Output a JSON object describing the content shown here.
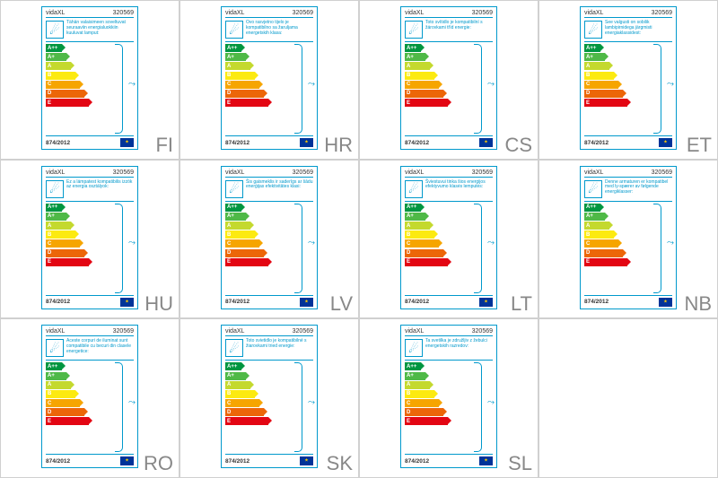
{
  "brand": "vidaXL",
  "sku": "320569",
  "regulation": "874/2012",
  "energy_classes": [
    {
      "label": "A++",
      "color": "#009640",
      "width": 18
    },
    {
      "label": "A+",
      "color": "#4fb947",
      "width": 23
    },
    {
      "label": "A",
      "color": "#c4d92e",
      "width": 28
    },
    {
      "label": "B",
      "color": "#fcea10",
      "width": 33
    },
    {
      "label": "C",
      "color": "#f6a500",
      "width": 38
    },
    {
      "label": "D",
      "color": "#ec6608",
      "width": 43
    },
    {
      "label": "E",
      "color": "#e30613",
      "width": 48
    }
  ],
  "labels": [
    {
      "code": "FI",
      "text": "Tähän valaisimeen soveltuvat seuraaviin energialuokkiin kuuluvat lamput:"
    },
    {
      "code": "HR",
      "text": "Ovo rasvjetno tijelo je kompatibilno sa žaruljama energetskih klasa:"
    },
    {
      "code": "CS",
      "text": "Toto svítidlo je kompatibilní s žárovkami tříd energie:"
    },
    {
      "code": "ET",
      "text": "See valgusti on sobilik lambipirnidega järgmisti energiaklassidest:"
    },
    {
      "code": "HU",
      "text": "Ez a lámpatest kompatibilis izzók az energia osztályok:"
    },
    {
      "code": "LV",
      "text": "Šis gaismeklis ir saderīgs ar šādu enerģijas efektivitātes klasi:"
    },
    {
      "code": "LT",
      "text": "Šviestuvui tinka šios energijos efektyvumo klasės lemputės:"
    },
    {
      "code": "NB",
      "text": "Denne armaturen er kompatibel med ly-spærer av følgende energiklasser:"
    },
    {
      "code": "RO",
      "text": "Aceste corpuri de iluminat sunt compatibile cu becuri din clasele energetice:"
    },
    {
      "code": "SK",
      "text": "Toto svietidlo je kompatibilné s žiarovkami tried energie:"
    },
    {
      "code": "SL",
      "text": "Ta svetilka je združljiv z žebulci energetskih razredov:"
    }
  ],
  "colors": {
    "border": "#0099cc",
    "grid": "#d0d0d0",
    "text": "#333333",
    "country": "#888888",
    "eu_bg": "#003399",
    "eu_star": "#ffcc00"
  }
}
